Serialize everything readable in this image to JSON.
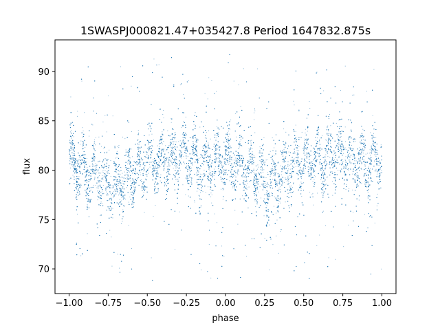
{
  "chart_data": {
    "type": "scatter",
    "title": "1SWASPJ000821.47+035427.8 Period 1647832.875s",
    "xlabel": "phase",
    "ylabel": "flux",
    "xlim": [
      -1.09,
      1.09
    ],
    "ylim": [
      67.5,
      93.2
    ],
    "x_ticks": [
      -1.0,
      -0.75,
      -0.5,
      -0.25,
      0.0,
      0.25,
      0.5,
      0.75,
      1.0
    ],
    "x_tick_labels": [
      "−1.00",
      "−0.75",
      "−0.50",
      "−0.25",
      "0.00",
      "0.25",
      "0.50",
      "0.75",
      "1.00"
    ],
    "y_ticks": [
      70,
      75,
      80,
      85,
      90
    ],
    "y_tick_labels": [
      "70",
      "75",
      "80",
      "85",
      "90"
    ],
    "grid": false,
    "marker_color": "#1f77b4",
    "series": [
      {
        "name": "",
        "point_count_estimate": 14000,
        "mean_flux_profile": {
          "phase": [
            -1.0,
            -0.9,
            -0.8,
            -0.75,
            -0.7,
            -0.6,
            -0.5,
            -0.4,
            -0.3,
            -0.25,
            -0.2,
            -0.1,
            0.0,
            0.1,
            0.2,
            0.25,
            0.3,
            0.4,
            0.5,
            0.6,
            0.7,
            0.75,
            0.8,
            0.9,
            1.0
          ],
          "flux": [
            81.0,
            80.0,
            79.0,
            78.8,
            78.5,
            79.5,
            80.5,
            81.0,
            81.5,
            81.5,
            81.0,
            80.5,
            80.8,
            80.5,
            79.5,
            79.0,
            78.8,
            80.0,
            80.8,
            81.0,
            81.5,
            81.5,
            81.0,
            80.5,
            81.0
          ]
        },
        "core_spread": 2.2,
        "flux_range": [
          68.8,
          92.0
        ]
      }
    ]
  }
}
